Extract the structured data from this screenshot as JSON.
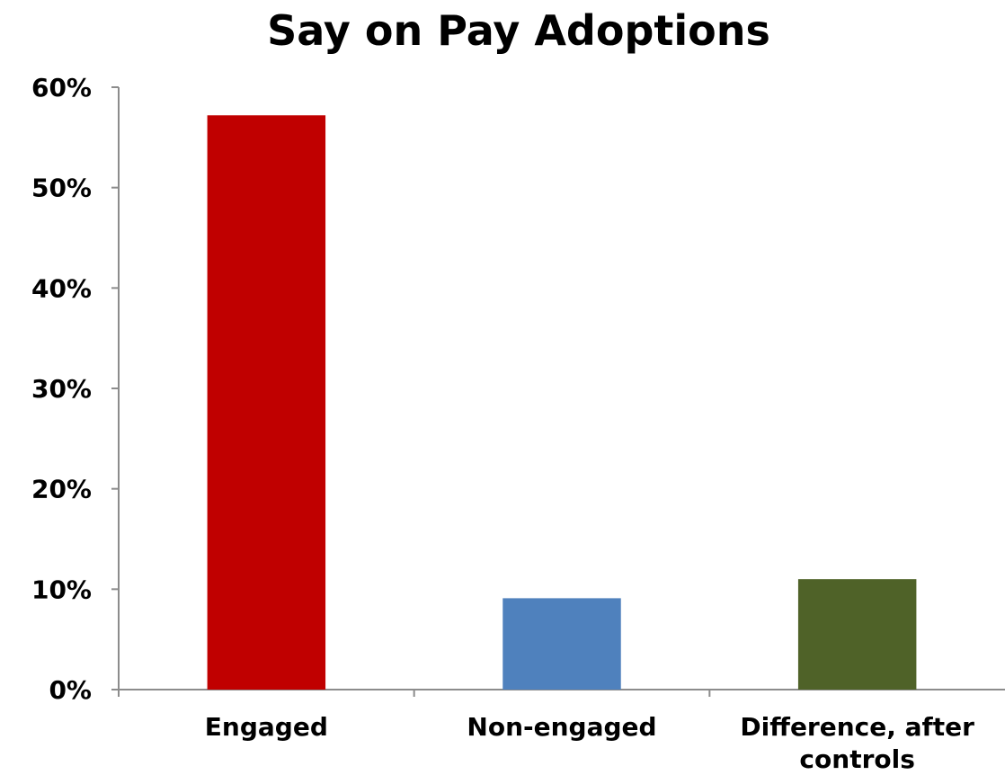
{
  "chart_data": {
    "type": "bar",
    "title": "Say on Pay Adoptions",
    "xlabel": "",
    "ylabel": "",
    "categories": [
      [
        "Engaged"
      ],
      [
        "Non-engaged"
      ],
      [
        "Difference, after",
        "controls"
      ]
    ],
    "values": [
      57.2,
      9.1,
      11.0
    ],
    "value_unit": "%",
    "ylim": [
      0,
      60
    ],
    "yticks": [
      0,
      10,
      20,
      30,
      40,
      50,
      60
    ],
    "ytick_labels": [
      "0%",
      "10%",
      "20%",
      "30%",
      "40%",
      "50%",
      "60%"
    ],
    "bar_colors": [
      "#c00000",
      "#4f81bd",
      "#4f6228"
    ],
    "grid": false,
    "legend": "none"
  }
}
